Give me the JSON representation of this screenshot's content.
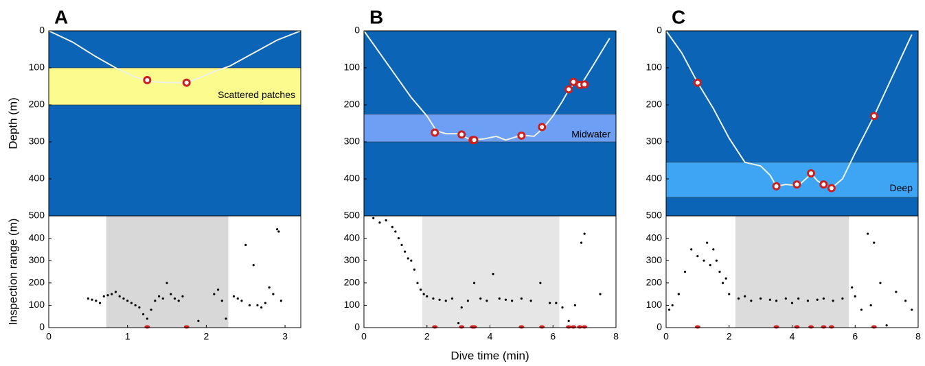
{
  "chart_data": [
    {
      "type": "line",
      "title": "A",
      "ylabel": "Depth (m)",
      "xlim": [
        0,
        3.2
      ],
      "ylim": [
        0,
        500
      ],
      "yticks": [
        0,
        100,
        200,
        300,
        400
      ],
      "background": "#0b64b5",
      "band": {
        "range": [
          100,
          200
        ],
        "label": "Scattered patches",
        "color": "#fbfb8e"
      },
      "profile": {
        "x": [
          0,
          0.3,
          0.6,
          0.85,
          1.1,
          1.3,
          1.5,
          1.75,
          1.9,
          2.1,
          2.3,
          2.6,
          2.9,
          3.2
        ],
        "y": [
          0,
          30,
          70,
          100,
          125,
          137,
          140,
          140,
          128,
          110,
          95,
          60,
          25,
          0
        ]
      },
      "events": {
        "x": [
          1.25,
          1.75
        ],
        "y": [
          133,
          140
        ],
        "color": "#cc2020"
      }
    },
    {
      "type": "scatter",
      "ylabel": "Inspection range (m)",
      "xlim": [
        0,
        3.2
      ],
      "ylim": [
        0,
        500
      ],
      "xticks": [
        0,
        1,
        2,
        3
      ],
      "yticks": [
        0,
        100,
        200,
        300,
        400,
        500
      ],
      "shade": [
        0.73,
        2.28
      ],
      "shade_color": "#d8d8d8",
      "color": "#000000",
      "x": [
        0.5,
        0.55,
        0.6,
        0.65,
        0.7,
        0.75,
        0.8,
        0.85,
        0.9,
        0.95,
        1.0,
        1.05,
        1.1,
        1.15,
        1.2,
        1.25,
        1.3,
        1.35,
        1.4,
        1.45,
        1.5,
        1.55,
        1.6,
        1.65,
        1.7,
        1.9,
        2.1,
        2.15,
        2.2,
        2.25,
        2.35,
        2.4,
        2.45,
        2.5,
        2.55,
        2.6,
        2.65,
        2.7,
        2.75,
        2.8,
        2.85,
        2.9,
        2.95,
        2.92
      ],
      "y": [
        130,
        125,
        120,
        110,
        140,
        145,
        150,
        160,
        140,
        130,
        120,
        110,
        100,
        90,
        60,
        40,
        80,
        120,
        140,
        130,
        200,
        150,
        130,
        120,
        140,
        30,
        150,
        170,
        120,
        40,
        140,
        130,
        120,
        370,
        100,
        280,
        100,
        90,
        110,
        180,
        150,
        440,
        120,
        430
      ],
      "events": {
        "x": [
          1.25,
          1.75
        ],
        "color": "#cc2020"
      }
    },
    {
      "type": "line",
      "title": "B",
      "xlim": [
        0,
        8
      ],
      "ylim": [
        0,
        500
      ],
      "yticks": [
        0,
        100,
        200,
        300,
        400
      ],
      "background": "#0b64b5",
      "band": {
        "range": [
          225,
          300
        ],
        "label": "Midwater",
        "color": "#6d9ff5"
      },
      "profile": {
        "x": [
          0,
          0.5,
          1,
          1.5,
          2,
          2.3,
          2.6,
          3,
          3.4,
          3.8,
          4.2,
          4.5,
          5,
          5.4,
          5.7,
          6,
          6.3,
          6.5,
          6.7,
          6.9,
          7.3,
          7.8
        ],
        "y": [
          0,
          60,
          120,
          180,
          230,
          270,
          278,
          278,
          295,
          292,
          285,
          295,
          282,
          285,
          262,
          230,
          190,
          160,
          140,
          145,
          90,
          20
        ]
      },
      "events": {
        "x": [
          2.25,
          3.1,
          3.45,
          3.5,
          5,
          5.65,
          6.5,
          6.65,
          6.85,
          7.0
        ],
        "y": [
          275,
          280,
          295,
          295,
          283,
          260,
          158,
          138,
          146,
          145
        ],
        "color": "#cc2020"
      }
    },
    {
      "type": "scatter",
      "xlabel": "Dive time (min)",
      "xlim": [
        0,
        8
      ],
      "ylim": [
        0,
        500
      ],
      "xticks": [
        0,
        2,
        4,
        6,
        8
      ],
      "yticks": [
        0,
        100,
        200,
        300,
        400,
        500
      ],
      "shade": [
        1.85,
        6.2
      ],
      "shade_color": "#e6e6e6",
      "color": "#000000",
      "x": [
        0.3,
        0.5,
        0.7,
        0.9,
        1.0,
        1.1,
        1.2,
        1.3,
        1.4,
        1.5,
        1.6,
        1.7,
        1.8,
        1.9,
        2.0,
        2.2,
        2.4,
        2.6,
        2.8,
        3.0,
        3.1,
        3.3,
        3.5,
        3.7,
        3.9,
        4.1,
        4.3,
        4.5,
        4.7,
        5.0,
        5.3,
        5.6,
        5.9,
        6.1,
        6.3,
        6.5,
        6.7,
        6.9,
        7.0,
        7.5
      ],
      "y": [
        490,
        470,
        480,
        450,
        430,
        400,
        370,
        340,
        310,
        300,
        260,
        200,
        170,
        150,
        140,
        130,
        125,
        120,
        130,
        20,
        90,
        120,
        200,
        130,
        120,
        240,
        130,
        125,
        120,
        130,
        120,
        200,
        110,
        110,
        90,
        30,
        100,
        380,
        420,
        150
      ],
      "events": {
        "x": [
          2.25,
          3.1,
          3.45,
          3.5,
          5,
          5.65,
          6.5,
          6.65,
          6.85,
          7.0
        ],
        "color": "#cc2020"
      }
    },
    {
      "type": "line",
      "title": "C",
      "xlim": [
        0,
        8
      ],
      "ylim": [
        0,
        500
      ],
      "yticks": [
        0,
        100,
        200,
        300,
        400
      ],
      "background": "#0b64b5",
      "band": {
        "range": [
          355,
          450
        ],
        "label": "Deep",
        "color": "#3ea5f5"
      },
      "profile": {
        "x": [
          0,
          0.5,
          1,
          1.5,
          2,
          2.5,
          3,
          3.3,
          3.5,
          3.8,
          4.2,
          4.5,
          4.6,
          4.8,
          5,
          5.25,
          5.6,
          6,
          6.6,
          7.2,
          7.8
        ],
        "y": [
          0,
          60,
          140,
          210,
          290,
          355,
          365,
          390,
          420,
          415,
          418,
          395,
          385,
          405,
          415,
          425,
          400,
          330,
          230,
          120,
          10
        ]
      },
      "events": {
        "x": [
          1.0,
          3.5,
          4.15,
          4.6,
          5.0,
          5.25,
          6.6
        ],
        "y": [
          140,
          420,
          415,
          385,
          415,
          425,
          230
        ],
        "color": "#cc2020"
      }
    },
    {
      "type": "scatter",
      "xlim": [
        0,
        8
      ],
      "ylim": [
        0,
        500
      ],
      "xticks": [
        0,
        2,
        4,
        6,
        8
      ],
      "yticks": [
        0,
        100,
        200,
        300,
        400,
        500
      ],
      "shade": [
        2.2,
        5.8
      ],
      "shade_color": "#dcdcdc",
      "color": "#000000",
      "x": [
        0.1,
        0.2,
        0.4,
        0.6,
        0.8,
        1.0,
        1.2,
        1.3,
        1.4,
        1.5,
        1.6,
        1.7,
        1.8,
        1.9,
        2.0,
        2.3,
        2.5,
        2.7,
        3.0,
        3.3,
        3.5,
        3.8,
        4.0,
        4.2,
        4.5,
        4.8,
        5.0,
        5.3,
        5.6,
        5.9,
        6.0,
        6.2,
        6.4,
        6.5,
        6.6,
        6.8,
        7.0,
        7.3,
        7.6,
        7.8
      ],
      "y": [
        80,
        100,
        150,
        250,
        350,
        320,
        300,
        380,
        280,
        350,
        300,
        250,
        200,
        220,
        150,
        130,
        140,
        120,
        130,
        125,
        120,
        130,
        110,
        130,
        120,
        125,
        130,
        120,
        130,
        180,
        140,
        80,
        420,
        100,
        380,
        200,
        10,
        160,
        120,
        80
      ],
      "events": {
        "x": [
          1.0,
          3.5,
          4.15,
          4.6,
          5.0,
          5.25,
          6.6
        ],
        "color": "#cc2020"
      }
    }
  ]
}
